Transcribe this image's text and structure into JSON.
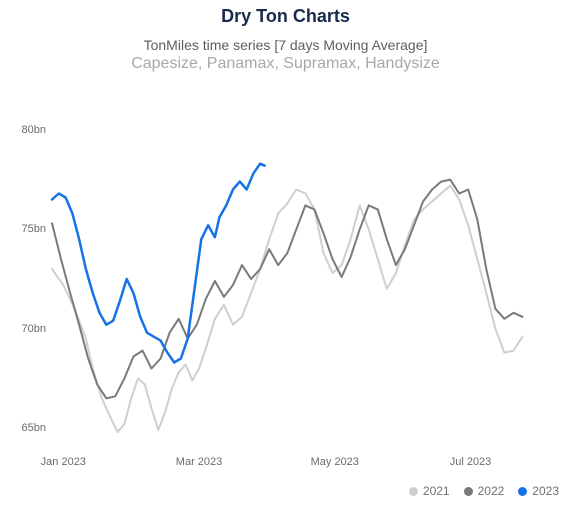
{
  "title": "Dry Ton Charts",
  "subtitle1": "TonMiles time series [7 days Moving Average]",
  "subtitle2": "Capesize, Panamax, Supramax, Handysize",
  "chart": {
    "type": "line",
    "background_color": "#ffffff",
    "title_color": "#1a2a4a",
    "title_fontsize": 18,
    "subtitle1_color": "#5e5e5e",
    "subtitle1_fontsize": 14,
    "subtitle2_color": "#a8a8a8",
    "subtitle2_fontsize": 16,
    "axis_label_color": "#6b6b6b",
    "axis_fontsize": 11,
    "ylim": [
      64,
      81
    ],
    "ytick_step": 5,
    "ytick_start": 65,
    "ytick_end": 80,
    "y_suffix": "bn",
    "xlim": [
      0,
      225
    ],
    "x_ticks": [
      {
        "pos": 5,
        "label": "Jan 2023"
      },
      {
        "pos": 65,
        "label": "Mar 2023"
      },
      {
        "pos": 125,
        "label": "May 2023"
      },
      {
        "pos": 185,
        "label": "Jul 2023"
      }
    ],
    "line_width_light": 2.0,
    "line_width_dark": 2.0,
    "line_width_accent": 2.5,
    "series": [
      {
        "name": "2021",
        "color": "#cfcfcf",
        "data": [
          [
            0,
            73.0
          ],
          [
            5,
            72.2
          ],
          [
            10,
            71.0
          ],
          [
            15,
            69.5
          ],
          [
            18,
            68.0
          ],
          [
            22,
            66.5
          ],
          [
            26,
            65.5
          ],
          [
            29,
            64.8
          ],
          [
            32,
            65.2
          ],
          [
            35,
            66.5
          ],
          [
            38,
            67.5
          ],
          [
            41,
            67.2
          ],
          [
            44,
            66.0
          ],
          [
            47,
            64.9
          ],
          [
            50,
            65.8
          ],
          [
            53,
            67.0
          ],
          [
            56,
            67.8
          ],
          [
            59,
            68.2
          ],
          [
            62,
            67.4
          ],
          [
            65,
            68.0
          ],
          [
            68,
            69.0
          ],
          [
            72,
            70.5
          ],
          [
            76,
            71.2
          ],
          [
            80,
            70.2
          ],
          [
            84,
            70.6
          ],
          [
            88,
            71.8
          ],
          [
            92,
            73.0
          ],
          [
            96,
            74.5
          ],
          [
            100,
            75.8
          ],
          [
            104,
            76.3
          ],
          [
            108,
            77.0
          ],
          [
            112,
            76.8
          ],
          [
            116,
            76.0
          ],
          [
            120,
            73.8
          ],
          [
            124,
            72.8
          ],
          [
            128,
            73.2
          ],
          [
            132,
            74.5
          ],
          [
            136,
            76.2
          ],
          [
            140,
            75.0
          ],
          [
            144,
            73.5
          ],
          [
            148,
            72.0
          ],
          [
            152,
            72.8
          ],
          [
            156,
            74.2
          ],
          [
            160,
            75.5
          ],
          [
            164,
            76.0
          ],
          [
            168,
            76.4
          ],
          [
            172,
            76.8
          ],
          [
            176,
            77.2
          ],
          [
            180,
            76.5
          ],
          [
            184,
            75.2
          ],
          [
            188,
            73.5
          ],
          [
            192,
            71.8
          ],
          [
            196,
            70.0
          ],
          [
            200,
            68.8
          ],
          [
            204,
            68.9
          ],
          [
            208,
            69.6
          ]
        ]
      },
      {
        "name": "2022",
        "color": "#7a7a7a",
        "data": [
          [
            0,
            75.3
          ],
          [
            4,
            73.5
          ],
          [
            8,
            71.8
          ],
          [
            12,
            70.2
          ],
          [
            16,
            68.5
          ],
          [
            20,
            67.2
          ],
          [
            24,
            66.5
          ],
          [
            28,
            66.6
          ],
          [
            32,
            67.5
          ],
          [
            36,
            68.6
          ],
          [
            40,
            68.9
          ],
          [
            44,
            68.0
          ],
          [
            48,
            68.5
          ],
          [
            52,
            69.8
          ],
          [
            56,
            70.5
          ],
          [
            60,
            69.5
          ],
          [
            64,
            70.2
          ],
          [
            68,
            71.5
          ],
          [
            72,
            72.4
          ],
          [
            76,
            71.6
          ],
          [
            80,
            72.2
          ],
          [
            84,
            73.2
          ],
          [
            88,
            72.5
          ],
          [
            92,
            73.0
          ],
          [
            96,
            74.0
          ],
          [
            100,
            73.2
          ],
          [
            104,
            73.8
          ],
          [
            108,
            75.0
          ],
          [
            112,
            76.2
          ],
          [
            116,
            76.0
          ],
          [
            120,
            74.8
          ],
          [
            124,
            73.5
          ],
          [
            128,
            72.6
          ],
          [
            132,
            73.6
          ],
          [
            136,
            75.0
          ],
          [
            140,
            76.2
          ],
          [
            144,
            76.0
          ],
          [
            148,
            74.5
          ],
          [
            152,
            73.2
          ],
          [
            156,
            74.0
          ],
          [
            160,
            75.2
          ],
          [
            164,
            76.4
          ],
          [
            168,
            77.0
          ],
          [
            172,
            77.4
          ],
          [
            176,
            77.5
          ],
          [
            180,
            76.8
          ],
          [
            184,
            77.0
          ],
          [
            188,
            75.5
          ],
          [
            192,
            73.0
          ],
          [
            196,
            71.0
          ],
          [
            200,
            70.5
          ],
          [
            204,
            70.8
          ],
          [
            208,
            70.6
          ]
        ]
      },
      {
        "name": "2023",
        "color": "#1573e6",
        "data": [
          [
            0,
            76.5
          ],
          [
            3,
            76.8
          ],
          [
            6,
            76.6
          ],
          [
            9,
            75.8
          ],
          [
            12,
            74.5
          ],
          [
            15,
            73.0
          ],
          [
            18,
            71.8
          ],
          [
            21,
            70.8
          ],
          [
            24,
            70.2
          ],
          [
            27,
            70.4
          ],
          [
            30,
            71.4
          ],
          [
            33,
            72.5
          ],
          [
            36,
            71.8
          ],
          [
            39,
            70.6
          ],
          [
            42,
            69.8
          ],
          [
            45,
            69.6
          ],
          [
            48,
            69.4
          ],
          [
            51,
            68.8
          ],
          [
            54,
            68.3
          ],
          [
            57,
            68.5
          ],
          [
            60,
            69.5
          ],
          [
            63,
            72.0
          ],
          [
            66,
            74.5
          ],
          [
            69,
            75.2
          ],
          [
            72,
            74.6
          ],
          [
            74,
            75.6
          ],
          [
            77,
            76.2
          ],
          [
            80,
            77.0
          ],
          [
            83,
            77.4
          ],
          [
            86,
            77.0
          ],
          [
            89,
            77.8
          ],
          [
            92,
            78.3
          ],
          [
            94,
            78.2
          ]
        ]
      }
    ],
    "legend": {
      "position": "bottom-right",
      "fontsize": 12,
      "text_color": "#707070",
      "items": [
        {
          "label": "2021",
          "color": "#cfcfcf"
        },
        {
          "label": "2022",
          "color": "#7a7a7a"
        },
        {
          "label": "2023",
          "color": "#1573e6"
        }
      ]
    }
  }
}
